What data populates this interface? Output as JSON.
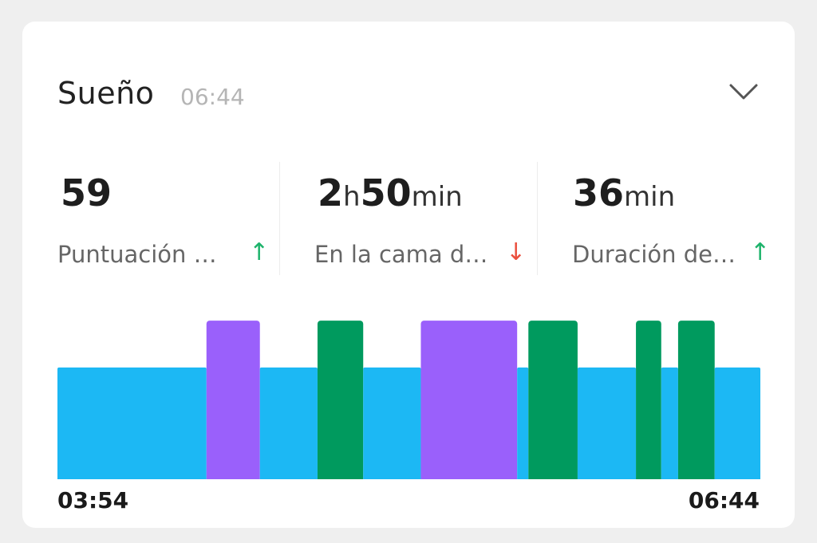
{
  "header": {
    "title": "Sueño",
    "time": "06:44"
  },
  "stats": [
    {
      "value_parts": [
        {
          "text": "59",
          "big": true
        }
      ],
      "label": "Puntuación …",
      "arrow": "↑",
      "arrow_color": "#1db36b"
    },
    {
      "value_parts": [
        {
          "text": "2",
          "big": true
        },
        {
          "text": "h",
          "big": false
        },
        {
          "text": "50",
          "big": true
        },
        {
          "text": "min",
          "big": false
        }
      ],
      "label": "En la cama d…",
      "arrow": "↓",
      "arrow_color": "#ea4f3d"
    },
    {
      "value_parts": [
        {
          "text": "36",
          "big": true
        },
        {
          "text": "min",
          "big": false
        }
      ],
      "label": "Duración de…",
      "arrow": "↑",
      "arrow_color": "#1db36b"
    }
  ],
  "colors": {
    "light": "#1cb8f4",
    "rem": "#9a60fb",
    "deep": "#009a5e"
  },
  "chart_data": {
    "type": "bar",
    "x_start": "03:54",
    "x_end": "06:44",
    "segments": [
      {
        "stage": "light",
        "start": 0.0,
        "end": 0.212
      },
      {
        "stage": "rem",
        "start": 0.212,
        "end": 0.288
      },
      {
        "stage": "light",
        "start": 0.288,
        "end": 0.37
      },
      {
        "stage": "deep",
        "start": 0.37,
        "end": 0.435
      },
      {
        "stage": "light",
        "start": 0.435,
        "end": 0.517
      },
      {
        "stage": "rem",
        "start": 0.517,
        "end": 0.654
      },
      {
        "stage": "light",
        "start": 0.654,
        "end": 0.67
      },
      {
        "stage": "deep",
        "start": 0.67,
        "end": 0.74
      },
      {
        "stage": "light",
        "start": 0.74,
        "end": 0.823
      },
      {
        "stage": "deep",
        "start": 0.823,
        "end": 0.859
      },
      {
        "stage": "light",
        "start": 0.859,
        "end": 0.883
      },
      {
        "stage": "deep",
        "start": 0.883,
        "end": 0.935
      },
      {
        "stage": "light",
        "start": 0.935,
        "end": 1.0
      }
    ],
    "stage_levels": {
      "light": 0.62,
      "rem": 0.88,
      "deep": 0.88
    }
  }
}
